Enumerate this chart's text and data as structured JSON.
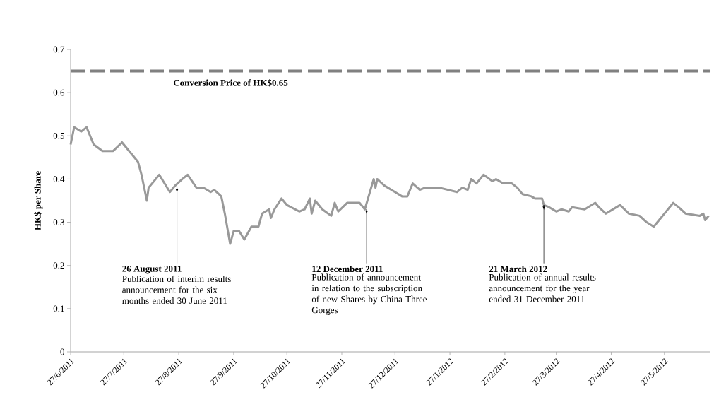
{
  "chart_data": {
    "type": "line",
    "ylabel": "HK$ per Share",
    "x": [
      "2011-06-27",
      "2011-06-29",
      "2011-07-03",
      "2011-07-06",
      "2011-07-10",
      "2011-07-15",
      "2011-07-21",
      "2011-07-26",
      "2011-07-31",
      "2011-08-04",
      "2011-08-06",
      "2011-08-09",
      "2011-08-10",
      "2011-08-16",
      "2011-08-22",
      "2011-08-25",
      "2011-08-29",
      "2011-09-01",
      "2011-09-06",
      "2011-09-10",
      "2011-09-14",
      "2011-09-16",
      "2011-09-20",
      "2011-09-22",
      "2011-09-25",
      "2011-09-27",
      "2011-09-30",
      "2011-10-03",
      "2011-10-07",
      "2011-10-11",
      "2011-10-13",
      "2011-10-17",
      "2011-10-18",
      "2011-10-20",
      "2011-10-24",
      "2011-10-27",
      "2011-11-03",
      "2011-11-06",
      "2011-11-09",
      "2011-11-10",
      "2011-11-12",
      "2011-11-16",
      "2011-11-21",
      "2011-11-23",
      "2011-11-25",
      "2011-11-30",
      "2011-12-07",
      "2011-12-10",
      "2011-12-15",
      "2011-12-16",
      "2011-12-17",
      "2011-12-21",
      "2011-12-27",
      "2011-12-31",
      "2012-01-03",
      "2012-01-06",
      "2012-01-10",
      "2012-01-13",
      "2012-01-21",
      "2012-01-31",
      "2012-02-03",
      "2012-02-06",
      "2012-02-08",
      "2012-02-11",
      "2012-02-15",
      "2012-02-20",
      "2012-02-22",
      "2012-02-26",
      "2012-03-02",
      "2012-03-05",
      "2012-03-08",
      "2012-03-13",
      "2012-03-15",
      "2012-03-19",
      "2012-03-20",
      "2012-03-23",
      "2012-03-27",
      "2012-03-30",
      "2012-04-03",
      "2012-04-05",
      "2012-04-12",
      "2012-04-18",
      "2012-04-20",
      "2012-04-24",
      "2012-05-02",
      "2012-05-07",
      "2012-05-13",
      "2012-05-17",
      "2012-05-21",
      "2012-05-25",
      "2012-05-27",
      "2012-06-01",
      "2012-06-04",
      "2012-06-08",
      "2012-06-16",
      "2012-06-18",
      "2012-06-19",
      "2012-06-21"
    ],
    "series": [
      {
        "color": "#999999",
        "values": [
          0.48,
          0.52,
          0.51,
          0.52,
          0.48,
          0.465,
          0.465,
          0.485,
          0.46,
          0.44,
          0.41,
          0.35,
          0.38,
          0.41,
          0.37,
          0.385,
          0.4,
          0.41,
          0.38,
          0.38,
          0.37,
          0.375,
          0.36,
          0.32,
          0.25,
          0.28,
          0.28,
          0.26,
          0.29,
          0.29,
          0.32,
          0.33,
          0.31,
          0.33,
          0.355,
          0.34,
          0.325,
          0.33,
          0.355,
          0.32,
          0.35,
          0.33,
          0.315,
          0.345,
          0.325,
          0.345,
          0.345,
          0.33,
          0.4,
          0.38,
          0.4,
          0.385,
          0.37,
          0.36,
          0.36,
          0.39,
          0.375,
          0.38,
          0.38,
          0.37,
          0.38,
          0.375,
          0.4,
          0.39,
          0.41,
          0.395,
          0.4,
          0.39,
          0.39,
          0.38,
          0.365,
          0.36,
          0.355,
          0.355,
          0.34,
          0.335,
          0.325,
          0.33,
          0.325,
          0.335,
          0.33,
          0.345,
          0.335,
          0.32,
          0.34,
          0.32,
          0.315,
          0.3,
          0.29,
          0.31,
          0.32,
          0.345,
          0.335,
          0.32,
          0.315,
          0.32,
          0.305,
          0.315
        ]
      }
    ],
    "xlim": [
      "2011-06-27",
      "2012-06-22"
    ],
    "xticks": [
      {
        "value": "2011-06-27",
        "label": "27/6/2011"
      },
      {
        "value": "2011-07-27",
        "label": "27/7/2011"
      },
      {
        "value": "2011-08-27",
        "label": "27/8/2011"
      },
      {
        "value": "2011-09-27",
        "label": "27/9/2011"
      },
      {
        "value": "2011-10-27",
        "label": "27/10/2011"
      },
      {
        "value": "2011-11-27",
        "label": "27/11/2011"
      },
      {
        "value": "2011-12-27",
        "label": "27/12/2011"
      },
      {
        "value": "2012-01-27",
        "label": "27/1/2012"
      },
      {
        "value": "2012-02-27",
        "label": "27/2/2012"
      },
      {
        "value": "2012-03-27",
        "label": "27/3/2012"
      },
      {
        "value": "2012-04-27",
        "label": "27/4/2012"
      },
      {
        "value": "2012-05-27",
        "label": "27/5/2012"
      }
    ],
    "ylim": [
      0,
      0.7
    ],
    "yticks": [
      0,
      0.1,
      0.2,
      0.3,
      0.4,
      0.5,
      0.6,
      0.7
    ],
    "ref_lines": [
      {
        "axis": "y",
        "value": 0.65,
        "label": "Conversion Price of HK$0.65",
        "color": "#808080",
        "line_style": "dashed"
      }
    ],
    "annotations": [
      {
        "text": "26 August 2011",
        "x": "2011-08-26",
        "y": 0.38
      },
      "Publication of interim results announcement for the six months ended 30 June 2011",
      {
        "text": "12 December 2011",
        "x": "2011-12-11",
        "y": 0.33
      },
      "Publication of announcement in relation to the subscription of new Shares by China Three Gorges",
      {
        "text": "21 March 2012",
        "x": "2012-03-20",
        "y": 0.34
      },
      "Publication of annual results announcement for the year ended 31 December 2011"
    ],
    "grid": false,
    "line_style": "solid",
    "marker": "none"
  }
}
